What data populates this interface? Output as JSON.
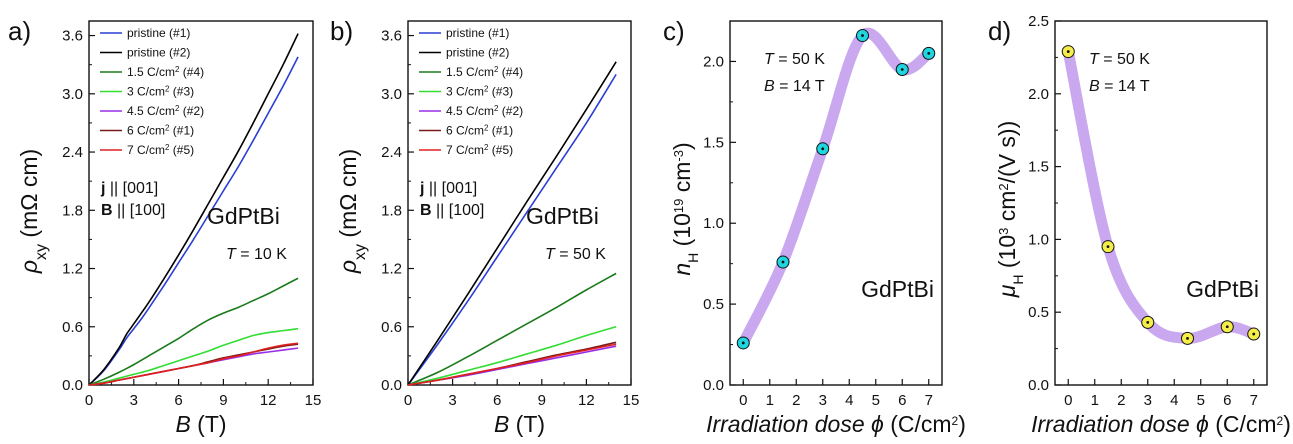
{
  "figure": {
    "panels": [
      {
        "letter": "a)",
        "xlabel_main": "B",
        "xlabel_unit": "(T)",
        "ylabel_main": "ρ",
        "ylabel_sub": "xy",
        "ylabel_unit": "(mΩ cm)",
        "orientation": {
          "line1_bold": "j",
          "line1_rest": "|| [001]",
          "line2_bold": "B",
          "line2_rest": "|| [100]"
        },
        "material": "GdPtBi",
        "temp": {
          "sym": "T",
          "rest": " = 10 K"
        },
        "legend_position": "top-left"
      },
      {
        "letter": "b)",
        "xlabel_main": "B",
        "xlabel_unit": "(T)",
        "ylabel_main": "ρ",
        "ylabel_sub": "xy",
        "ylabel_unit": "(mΩ cm)",
        "orientation": {
          "line1_bold": "j",
          "line1_rest": "|| [001]",
          "line2_bold": "B",
          "line2_rest": "|| [100]"
        },
        "material": "GdPtBi",
        "temp": {
          "sym": "T",
          "rest": " = 50 K"
        },
        "legend_position": "top-left"
      },
      {
        "letter": "c)",
        "xlabel_main": "Irradiation dose ",
        "xlabel_sym": "ϕ",
        "xlabel_unit": " (C/cm",
        "xlabel_sup": "2",
        "xlabel_end": ")",
        "ylabel_main": "n",
        "ylabel_sub": "H",
        "ylabel_unit": " (10",
        "ylabel_sup": "19",
        "ylabel_unit2": " cm",
        "ylabel_sup2": "-3",
        "ylabel_end": ")",
        "cond1": {
          "sym": "T",
          "rest": " = 50 K"
        },
        "cond2": {
          "sym": "B",
          "rest": " = 14 T"
        },
        "material": "GdPtBi"
      },
      {
        "letter": "d)",
        "xlabel_main": "Irradiation dose ",
        "xlabel_sym": "ϕ",
        "xlabel_unit": " (C/cm",
        "xlabel_sup": "2",
        "xlabel_end": ")",
        "ylabel_main": "μ",
        "ylabel_sub": "H",
        "ylabel_unit": " (10",
        "ylabel_sup": "3",
        "ylabel_unit2": " cm",
        "ylabel_sup2": "2",
        "ylabel_end": "/(V s))",
        "cond1": {
          "sym": "T",
          "rest": " = 50 K"
        },
        "cond2": {
          "sym": "B",
          "rest": " = 14 T"
        },
        "material": "GdPtBi"
      }
    ]
  },
  "chart_data": [
    {
      "type": "line",
      "xlabel": "B (T)",
      "ylabel": "ρxy (mΩ cm)",
      "xlim": [
        0,
        15
      ],
      "ylim": [
        0,
        3.75
      ],
      "xticks": [
        0,
        3,
        6,
        9,
        12,
        15
      ],
      "yticks": [
        "0.0",
        "0.6",
        "1.2",
        "1.8",
        "2.4",
        "3.0",
        "3.6"
      ],
      "annotations": [
        "j || [001]",
        "B || [100]",
        "GdPtBi",
        "T = 10 K"
      ],
      "series": [
        {
          "name": "pristine (#1)",
          "color": "#2a3fd4",
          "x": [
            0,
            1,
            2,
            2.5,
            3,
            3.5,
            4,
            5,
            6,
            7,
            8,
            9,
            10,
            11,
            12,
            13,
            14
          ],
          "y": [
            0,
            0.15,
            0.36,
            0.48,
            0.58,
            0.68,
            0.79,
            1.02,
            1.26,
            1.5,
            1.75,
            2.0,
            2.25,
            2.52,
            2.8,
            3.08,
            3.38
          ]
        },
        {
          "name": "pristine (#2)",
          "color": "#000000",
          "x": [
            0,
            1,
            2,
            2.5,
            3,
            3.5,
            4,
            5,
            6,
            7,
            8,
            9,
            10,
            11,
            12,
            13,
            14
          ],
          "y": [
            0,
            0.16,
            0.38,
            0.52,
            0.63,
            0.74,
            0.85,
            1.09,
            1.34,
            1.6,
            1.87,
            2.14,
            2.41,
            2.7,
            3.0,
            3.3,
            3.62
          ]
        },
        {
          "name": "1.5 C/cm2 (#4)",
          "color": "#1a7a1a",
          "x": [
            0,
            1,
            2,
            3,
            4,
            5,
            6,
            7,
            8,
            9,
            10,
            11,
            12,
            13,
            14
          ],
          "y": [
            0,
            0.06,
            0.13,
            0.21,
            0.3,
            0.39,
            0.48,
            0.58,
            0.67,
            0.74,
            0.8,
            0.87,
            0.94,
            1.02,
            1.1
          ]
        },
        {
          "name": "3 C/cm2 (#3)",
          "color": "#33dd33",
          "x": [
            0,
            1,
            2,
            3,
            4,
            5,
            6,
            7,
            8,
            9,
            10,
            11,
            12,
            13,
            14
          ],
          "y": [
            0,
            0.03,
            0.07,
            0.11,
            0.15,
            0.2,
            0.25,
            0.3,
            0.35,
            0.41,
            0.46,
            0.51,
            0.54,
            0.56,
            0.58
          ]
        },
        {
          "name": "4.5 C/cm2 (#2)",
          "color": "#9a2ee6",
          "x": [
            0,
            1,
            2,
            3,
            4,
            5,
            6,
            7,
            8,
            9,
            10,
            11,
            12,
            13,
            14
          ],
          "y": [
            0,
            0.02,
            0.05,
            0.08,
            0.11,
            0.14,
            0.17,
            0.2,
            0.23,
            0.26,
            0.29,
            0.32,
            0.34,
            0.36,
            0.38
          ]
        },
        {
          "name": "6 C/cm2 (#1)",
          "color": "#7a1a1a",
          "x": [
            0,
            1,
            2,
            3,
            4,
            5,
            6,
            7,
            8,
            9,
            10,
            11,
            12,
            13,
            14
          ],
          "y": [
            0,
            0.02,
            0.05,
            0.08,
            0.11,
            0.14,
            0.17,
            0.2,
            0.24,
            0.28,
            0.31,
            0.34,
            0.37,
            0.4,
            0.42
          ]
        },
        {
          "name": "7 C/cm2 (#5)",
          "color": "#e02020",
          "x": [
            0,
            1,
            2,
            3,
            4,
            5,
            6,
            7,
            8,
            9,
            10,
            11,
            12,
            13,
            14
          ],
          "y": [
            0,
            0.02,
            0.05,
            0.08,
            0.11,
            0.14,
            0.17,
            0.2,
            0.23,
            0.27,
            0.3,
            0.34,
            0.38,
            0.41,
            0.43
          ]
        }
      ]
    },
    {
      "type": "line",
      "xlabel": "B (T)",
      "ylabel": "ρxy (mΩ cm)",
      "xlim": [
        0,
        15
      ],
      "ylim": [
        0,
        3.75
      ],
      "xticks": [
        0,
        3,
        6,
        9,
        12,
        15
      ],
      "yticks": [
        "0.0",
        "0.6",
        "1.2",
        "1.8",
        "2.4",
        "3.0",
        "3.6"
      ],
      "annotations": [
        "j || [001]",
        "B || [100]",
        "GdPtBi",
        "T = 50 K"
      ],
      "series": [
        {
          "name": "pristine (#1)",
          "color": "#2a3fd4",
          "x": [
            0,
            2,
            4,
            6,
            8,
            10,
            12,
            14
          ],
          "y": [
            0,
            0.42,
            0.86,
            1.32,
            1.78,
            2.24,
            2.7,
            3.2
          ]
        },
        {
          "name": "pristine (#2)",
          "color": "#000000",
          "x": [
            0,
            2,
            4,
            6,
            8,
            10,
            12,
            14
          ],
          "y": [
            0,
            0.46,
            0.93,
            1.41,
            1.89,
            2.36,
            2.84,
            3.33
          ]
        },
        {
          "name": "1.5 C/cm2 (#4)",
          "color": "#1a7a1a",
          "x": [
            0,
            2,
            4,
            6,
            8,
            10,
            12,
            14
          ],
          "y": [
            0,
            0.13,
            0.29,
            0.46,
            0.63,
            0.8,
            0.98,
            1.15
          ]
        },
        {
          "name": "3 C/cm2 (#3)",
          "color": "#33dd33",
          "x": [
            0,
            2,
            4,
            6,
            8,
            10,
            12,
            14
          ],
          "y": [
            0,
            0.07,
            0.15,
            0.23,
            0.32,
            0.41,
            0.51,
            0.6
          ]
        },
        {
          "name": "4.5 C/cm2 (#2)",
          "color": "#9a2ee6",
          "x": [
            0,
            2,
            4,
            6,
            8,
            10,
            12,
            14
          ],
          "y": [
            0,
            0.05,
            0.1,
            0.16,
            0.22,
            0.28,
            0.34,
            0.4
          ]
        },
        {
          "name": "6 C/cm2 (#1)",
          "color": "#7a1a1a",
          "x": [
            0,
            2,
            4,
            6,
            8,
            10,
            12,
            14
          ],
          "y": [
            0,
            0.05,
            0.11,
            0.17,
            0.24,
            0.31,
            0.37,
            0.44
          ]
        },
        {
          "name": "7 C/cm2 (#5)",
          "color": "#e02020",
          "x": [
            0,
            2,
            4,
            6,
            8,
            10,
            12,
            14
          ],
          "y": [
            0,
            0.05,
            0.11,
            0.17,
            0.23,
            0.3,
            0.36,
            0.42
          ]
        }
      ]
    },
    {
      "type": "scatter",
      "xlabel": "Irradiation dose ϕ (C/cm2)",
      "ylabel": "nH (10^19 cm^-3)",
      "xlim": [
        -0.5,
        7.5
      ],
      "ylim": [
        0,
        2.25
      ],
      "xticks": [
        0,
        1,
        2,
        3,
        4,
        5,
        6,
        7
      ],
      "yticks": [
        "0.0",
        "0.5",
        "1.0",
        "1.5",
        "2.0"
      ],
      "marker_color": "#1fd6e0",
      "guide_color": "#c9a8ef",
      "annotations": [
        "T = 50 K",
        "B = 14 T",
        "GdPtBi"
      ],
      "x": [
        0,
        1.5,
        3,
        4.5,
        6,
        7
      ],
      "y": [
        0.26,
        0.76,
        1.46,
        2.16,
        1.95,
        2.05
      ]
    },
    {
      "type": "scatter",
      "xlabel": "Irradiation dose ϕ (C/cm2)",
      "ylabel": "μH (10^3 cm^2/(V s))",
      "xlim": [
        -0.5,
        7.5
      ],
      "ylim": [
        0,
        2.5
      ],
      "xticks": [
        0,
        1,
        2,
        3,
        4,
        5,
        6,
        7
      ],
      "yticks": [
        "0.0",
        "0.5",
        "1.0",
        "1.5",
        "2.0",
        "2.5"
      ],
      "marker_color": "#f5ee48",
      "guide_color": "#c9a8ef",
      "annotations": [
        "T = 50 K",
        "B = 14 T",
        "GdPtBi"
      ],
      "x": [
        0,
        1.5,
        3,
        4.5,
        6,
        7
      ],
      "y": [
        2.29,
        0.95,
        0.43,
        0.32,
        0.4,
        0.35
      ]
    }
  ]
}
